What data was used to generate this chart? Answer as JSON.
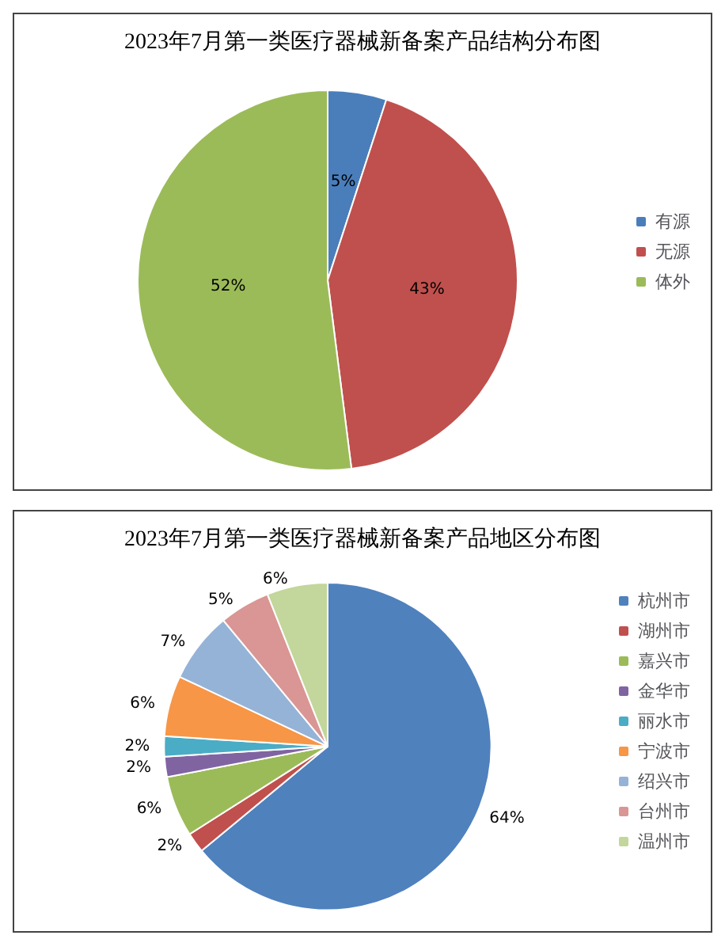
{
  "chart_data": [
    {
      "type": "pie",
      "title": "2023年7月第一类医疗器械新备案产品结构分布图",
      "categories": [
        "有源",
        "无源",
        "体外"
      ],
      "values": [
        5,
        43,
        52
      ],
      "value_labels": [
        "5%",
        "43%",
        "52%"
      ],
      "colors": [
        "#4a7ebb",
        "#c0504d",
        "#9bbb59"
      ],
      "legend": "right"
    },
    {
      "type": "pie",
      "title": "2023年7月第一类医疗器械新备案产品地区分布图",
      "categories": [
        "杭州市",
        "湖州市",
        "嘉兴市",
        "金华市",
        "丽水市",
        "宁波市",
        "绍兴市",
        "台州市",
        "温州市"
      ],
      "values": [
        64,
        2,
        6,
        2,
        2,
        6,
        7,
        5,
        6
      ],
      "value_labels": [
        "64%",
        "2%",
        "6%",
        "2%",
        "2%",
        "6%",
        "7%",
        "5%",
        "6%"
      ],
      "colors": [
        "#4f81bd",
        "#c0504d",
        "#9bbb59",
        "#8064a2",
        "#4bacc6",
        "#f79646",
        "#95b3d7",
        "#d99694",
        "#c3d69b"
      ],
      "legend": "right"
    }
  ]
}
